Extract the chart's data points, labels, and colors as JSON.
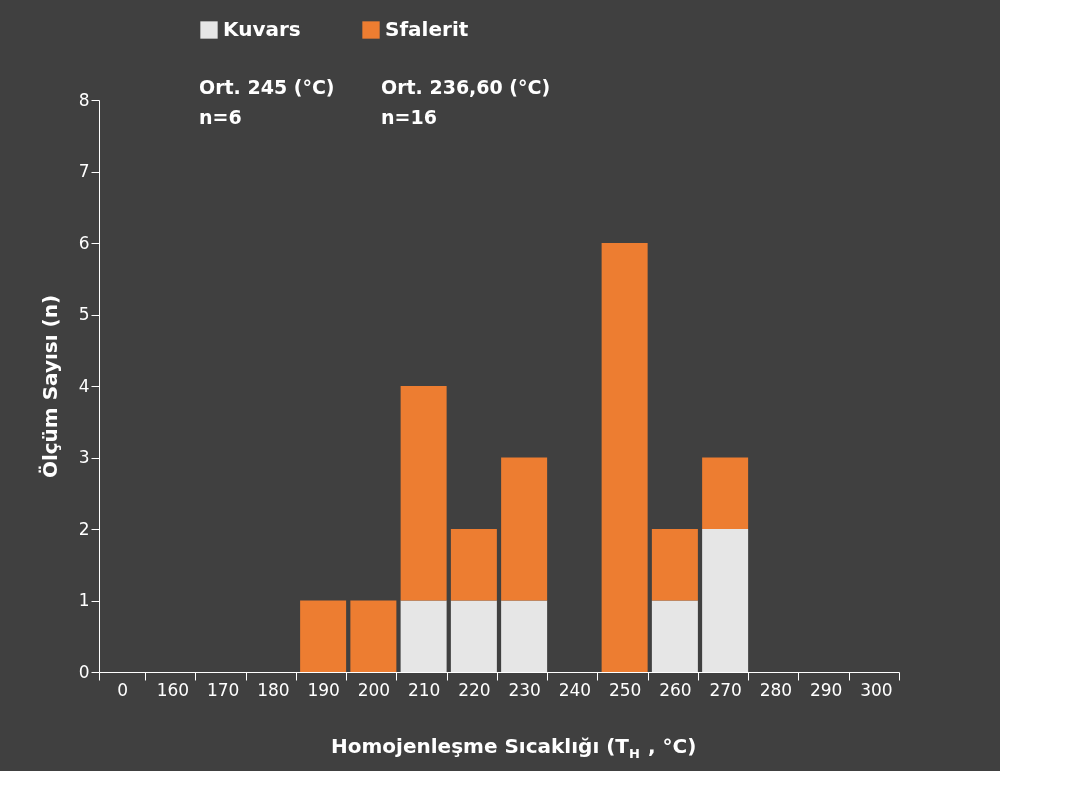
{
  "chart_data": {
    "type": "bar",
    "stacked": true,
    "xlabel": "Homojenleşme Sıcaklığı (T$_{H}$ , °C)",
    "ylabel": "Ölçüm Sayısı (n)",
    "categories": [
      "0",
      "160",
      "170",
      "180",
      "190",
      "200",
      "210",
      "220",
      "230",
      "240",
      "250",
      "260",
      "270",
      "280",
      "290",
      "300"
    ],
    "series": [
      {
        "name": "Kuvars",
        "color": "#e6e6e6",
        "values": [
          0,
          0,
          0,
          0,
          0,
          0,
          1,
          1,
          1,
          0,
          0,
          1,
          2,
          0,
          0,
          0
        ]
      },
      {
        "name": "Sfalerit",
        "color": "#ed7d31",
        "values": [
          0,
          0,
          0,
          0,
          1,
          1,
          3,
          1,
          2,
          0,
          6,
          1,
          1,
          0,
          0,
          0
        ]
      }
    ],
    "ylim": [
      0,
      8
    ],
    "yticks": [
      0,
      1,
      2,
      3,
      4,
      5,
      6,
      7,
      8
    ],
    "grid": false,
    "legend": "top",
    "annotations": [
      "Ort. 245 (°C)",
      "n=6",
      "Ort. 236,60 (°C)",
      "n=16"
    ]
  }
}
